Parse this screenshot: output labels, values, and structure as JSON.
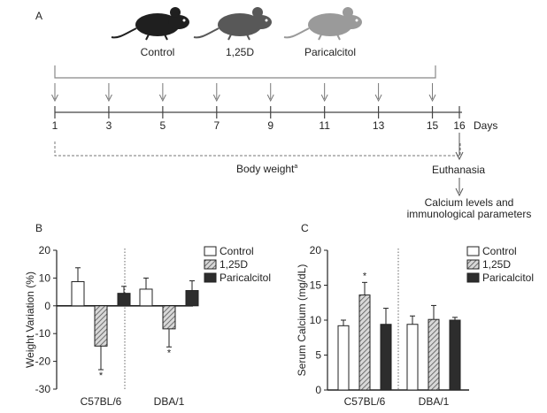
{
  "panels": {
    "a_label": "A",
    "b_label": "B",
    "c_label": "C"
  },
  "timeline": {
    "groups": [
      "Control",
      "1,25D",
      "Paricalcitol"
    ],
    "mouse_colors": [
      "#1f1f1f",
      "#585858",
      "#9a9a9a"
    ],
    "days": [
      "1",
      "3",
      "5",
      "7",
      "9",
      "11",
      "13",
      "15",
      "16"
    ],
    "days_label": "Days",
    "injection_days": [
      1,
      3,
      5,
      7,
      9,
      11,
      13,
      15
    ],
    "body_weight_label": "Body weight",
    "body_weight_mark": "a",
    "euthanasia_label": "Euthanasia",
    "outcome_line1": "Calcium levels and",
    "outcome_line2": "immunological parameters"
  },
  "legend": [
    "Control",
    "1,25D",
    "Paricalcitol"
  ],
  "colors": {
    "control": "#ffffff",
    "d125": "#9a9a9a",
    "paricalcitol": "#2b2b2b",
    "axis": "#222222"
  },
  "chart_data": [
    {
      "type": "bar",
      "panel": "B",
      "ylabel": "Weight Variation (%)",
      "ylim": [
        -30,
        20
      ],
      "yticks": [
        -30,
        -20,
        -10,
        0,
        10,
        20
      ],
      "categories": [
        "C57BL/6",
        "DBA/1"
      ],
      "series": [
        {
          "name": "Control",
          "values": [
            8.7,
            6.0
          ],
          "errors": [
            5.0,
            4.0
          ]
        },
        {
          "name": "1,25D",
          "values": [
            -14.5,
            -8.3
          ],
          "errors": [
            8.5,
            6.5
          ]
        },
        {
          "name": "Paricalcitol",
          "values": [
            4.5,
            5.5
          ],
          "errors": [
            2.5,
            3.5
          ]
        }
      ],
      "significance": [
        {
          "series": "1,25D",
          "category": "C57BL/6",
          "mark": "*"
        },
        {
          "series": "1,25D",
          "category": "DBA/1",
          "mark": "*"
        }
      ]
    },
    {
      "type": "bar",
      "panel": "C",
      "ylabel": "Serum Calcium (mg/dL)",
      "ylim": [
        0,
        20
      ],
      "yticks": [
        0,
        5,
        10,
        15,
        20
      ],
      "categories": [
        "C57BL/6",
        "DBA/1"
      ],
      "series": [
        {
          "name": "Control",
          "values": [
            9.2,
            9.4
          ],
          "errors": [
            0.8,
            1.2
          ]
        },
        {
          "name": "1,25D",
          "values": [
            13.6,
            10.1
          ],
          "errors": [
            1.8,
            2.0
          ]
        },
        {
          "name": "Paricalcitol",
          "values": [
            9.4,
            10.0
          ],
          "errors": [
            2.3,
            0.4
          ]
        }
      ],
      "significance": [
        {
          "series": "1,25D",
          "category": "C57BL/6",
          "mark": "*"
        }
      ]
    }
  ]
}
